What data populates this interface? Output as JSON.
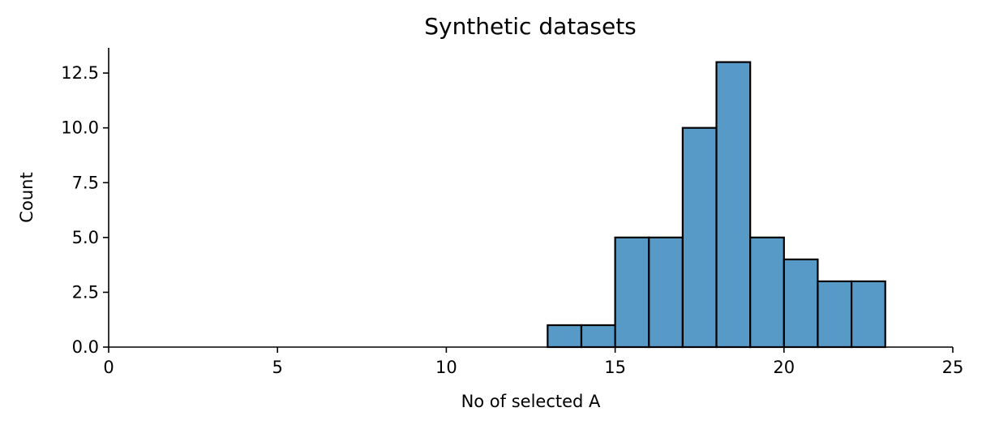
{
  "chart_data": {
    "type": "bar",
    "title": "Synthetic datasets",
    "xlabel": "No of selected A",
    "ylabel": "Count",
    "xlim": [
      0,
      25
    ],
    "ylim": [
      0,
      13.65
    ],
    "xticks": [
      0,
      5,
      10,
      15,
      20,
      25
    ],
    "xtick_labels": [
      "0",
      "5",
      "10",
      "15",
      "20",
      "25"
    ],
    "yticks": [
      0,
      2.5,
      5,
      7.5,
      10,
      12.5
    ],
    "ytick_labels": [
      "0.0",
      "2.5",
      "5.0",
      "7.5",
      "10.0",
      "12.5"
    ],
    "bin_width": 1,
    "bins": [
      {
        "x0": 13,
        "x1": 14,
        "count": 1
      },
      {
        "x0": 14,
        "x1": 15,
        "count": 1
      },
      {
        "x0": 15,
        "x1": 16,
        "count": 5
      },
      {
        "x0": 16,
        "x1": 17,
        "count": 5
      },
      {
        "x0": 17,
        "x1": 18,
        "count": 10
      },
      {
        "x0": 18,
        "x1": 19,
        "count": 13
      },
      {
        "x0": 19,
        "x1": 20,
        "count": 5
      },
      {
        "x0": 20,
        "x1": 21,
        "count": 4
      },
      {
        "x0": 21,
        "x1": 22,
        "count": 3
      },
      {
        "x0": 22,
        "x1": 23,
        "count": 3
      }
    ],
    "bar_color": "#5799c7",
    "edge_color": "#000000",
    "grid": false,
    "spines": "left-bottom"
  }
}
